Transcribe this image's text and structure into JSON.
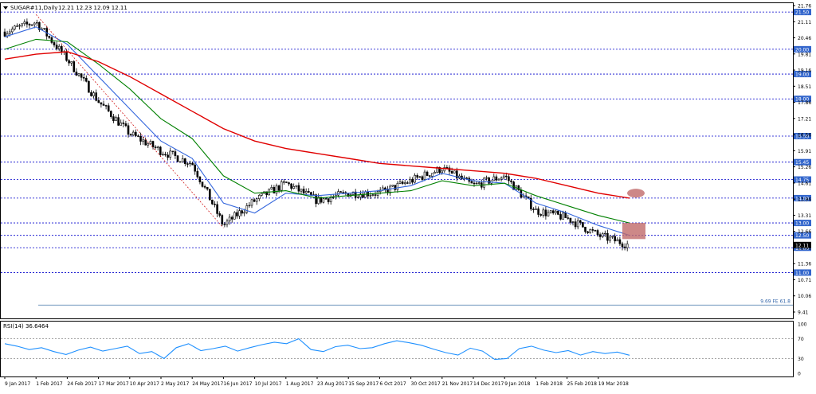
{
  "header": {
    "symbol": "SUGAR#11,Daily",
    "ohlc": "12.21 12.23 12.09 12.11"
  },
  "colors": {
    "background": "#ffffff",
    "grid": "#0000cc",
    "candle": "#000000",
    "ma_fast": "#3366dd",
    "ma_mid": "#008000",
    "ma_slow": "#e00000",
    "fib": "#cc0000",
    "level_label_bg": "#3366cc",
    "rsi_line": "#1e90ff",
    "marker": "#c06a6a"
  },
  "chart_data": [
    {
      "type": "candlestick",
      "title": "SUGAR#11,Daily",
      "ylim": [
        9.41,
        21.76
      ],
      "y_ticks": [
        "21.76",
        "21.11",
        "20.46",
        "19.81",
        "19.16",
        "18.51",
        "17.86",
        "17.21",
        "16.56",
        "15.91",
        "15.26",
        "14.61",
        "13.96",
        "13.31",
        "12.66",
        "12.01",
        "11.36",
        "10.71",
        "10.06",
        "9.41"
      ],
      "x_ticks": [
        "9 Jan 2017",
        "1 Feb 2017",
        "24 Feb 2017",
        "17 Mar 2017",
        "10 Apr 2017",
        "2 May 2017",
        "24 May 2017",
        "16 Jun 2017",
        "10 Jul 2017",
        "1 Aug 2017",
        "23 Aug 2017",
        "15 Sep 2017",
        "6 Oct 2017",
        "30 Oct 2017",
        "21 Nov 2017",
        "14 Dec 2017",
        "9 Jan 2018",
        "1 Feb 2018",
        "25 Feb 2018",
        "19 Mar 2018"
      ],
      "levels": [
        {
          "value": 21.5,
          "label": "21.50"
        },
        {
          "value": 20.0,
          "label": "20.00"
        },
        {
          "value": 19.0,
          "label": "19.00"
        },
        {
          "value": 18.0,
          "label": "18.00"
        },
        {
          "value": 16.5,
          "label": "16.50"
        },
        {
          "value": 15.45,
          "label": "15.45"
        },
        {
          "value": 14.75,
          "label": "14.75"
        },
        {
          "value": 14.0,
          "label": "14.00"
        },
        {
          "value": 13.0,
          "label": "13.00"
        },
        {
          "value": 12.5,
          "label": "12.50"
        },
        {
          "value": 12.0,
          "label": "12.00"
        },
        {
          "value": 11.0,
          "label": "11.00"
        }
      ],
      "price_marker": {
        "value": 12.11,
        "label": "12.11"
      },
      "fib_level": {
        "value": 9.69,
        "label": "9.69 FE 61.8"
      },
      "close_path": [
        {
          "x": "9 Jan 2017",
          "y": 20.7
        },
        {
          "x": "1 Feb 2017",
          "y": 21.1
        },
        {
          "x": "24 Feb 2017",
          "y": 19.6
        },
        {
          "x": "17 Mar 2017",
          "y": 17.9
        },
        {
          "x": "10 Apr 2017",
          "y": 16.6
        },
        {
          "x": "2 May 2017",
          "y": 15.9
        },
        {
          "x": "24 May 2017",
          "y": 15.4
        },
        {
          "x": "16 Jun 2017",
          "y": 12.9
        },
        {
          "x": "10 Jul 2017",
          "y": 13.9
        },
        {
          "x": "1 Aug 2017",
          "y": 14.6
        },
        {
          "x": "23 Aug 2017",
          "y": 13.9
        },
        {
          "x": "15 Sep 2017",
          "y": 14.2
        },
        {
          "x": "6 Oct 2017",
          "y": 14.2
        },
        {
          "x": "30 Oct 2017",
          "y": 14.7
        },
        {
          "x": "21 Nov 2017",
          "y": 15.2
        },
        {
          "x": "14 Dec 2017",
          "y": 14.5
        },
        {
          "x": "9 Jan 2018",
          "y": 14.9
        },
        {
          "x": "1 Feb 2018",
          "y": 13.5
        },
        {
          "x": "25 Feb 2018",
          "y": 13.2
        },
        {
          "x": "19 Mar 2018",
          "y": 12.5
        },
        {
          "x": "end",
          "y": 12.11
        }
      ],
      "series": [
        {
          "values": [
            20.5,
            20.9,
            20.2,
            18.9,
            17.6,
            16.3,
            15.6,
            13.8,
            13.4,
            14.2,
            14.1,
            14.2,
            14.3,
            14.5,
            15.0,
            14.7,
            14.6,
            13.8,
            13.4,
            12.9,
            12.5
          ]
        },
        {
          "values": [
            20.0,
            20.4,
            20.3,
            19.4,
            18.4,
            17.2,
            16.4,
            14.9,
            14.2,
            14.3,
            14.0,
            14.1,
            14.2,
            14.3,
            14.7,
            14.5,
            14.6,
            14.1,
            13.7,
            13.3,
            13.0
          ]
        },
        {
          "values": [
            19.6,
            19.8,
            19.9,
            19.5,
            18.9,
            18.2,
            17.5,
            16.8,
            16.3,
            16.0,
            15.8,
            15.6,
            15.4,
            15.3,
            15.2,
            15.1,
            15.0,
            14.8,
            14.5,
            14.2,
            14.0
          ]
        }
      ]
    },
    {
      "type": "line",
      "title": "RSI(14) 36.6464",
      "ylim": [
        0,
        100
      ],
      "y_ticks": [
        "100",
        "70",
        "30",
        "0"
      ],
      "levels": [
        70,
        30
      ],
      "series": [
        {
          "values": [
            60,
            55,
            48,
            52,
            44,
            38,
            47,
            53,
            45,
            50,
            55,
            40,
            44,
            30,
            52,
            60,
            46,
            50,
            55,
            45,
            52,
            58,
            63,
            60,
            70,
            48,
            44,
            54,
            57,
            50,
            52,
            60,
            66,
            62,
            57,
            49,
            42,
            37,
            51,
            45,
            28,
            30,
            50,
            55,
            47,
            42,
            46,
            37,
            44,
            40,
            43,
            36.6
          ]
        }
      ]
    }
  ]
}
